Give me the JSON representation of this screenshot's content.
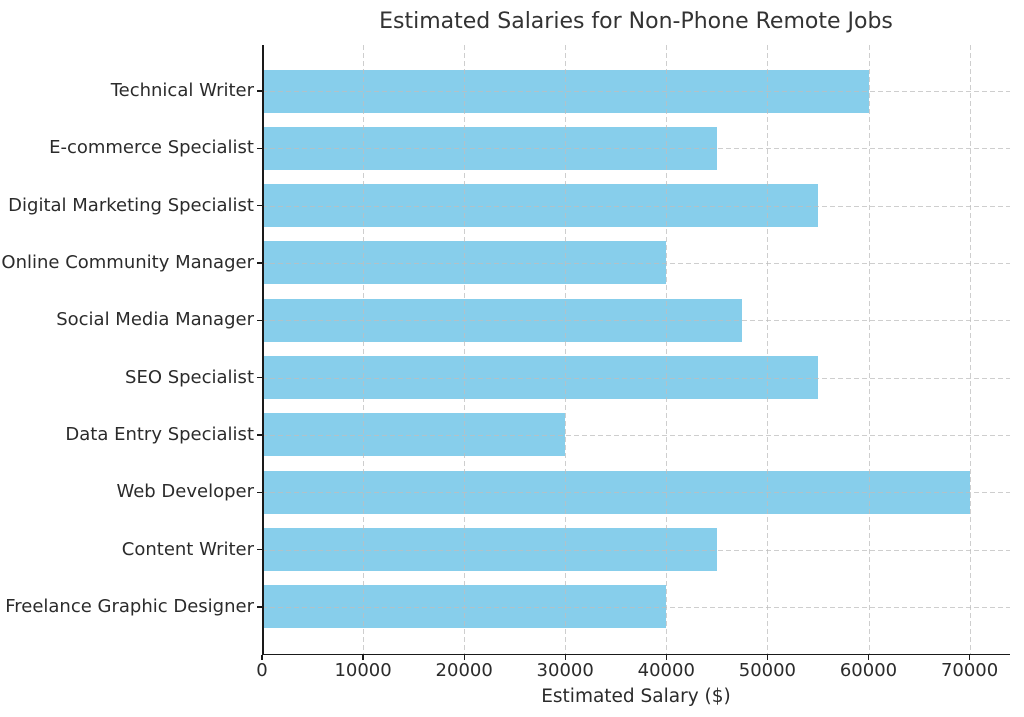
{
  "chart_data": {
    "type": "bar",
    "orientation": "horizontal",
    "title": "Estimated Salaries for Non-Phone Remote Jobs",
    "xlabel": "Estimated Salary ($)",
    "ylabel": "",
    "categories": [
      "Technical Writer",
      "E-commerce Specialist",
      "Digital Marketing Specialist",
      "Online Community Manager",
      "Social Media Manager",
      "SEO Specialist",
      "Data Entry Specialist",
      "Web Developer",
      "Content Writer",
      "Freelance Graphic Designer"
    ],
    "values": [
      60000,
      45000,
      55000,
      40000,
      47500,
      55000,
      30000,
      70000,
      45000,
      40000
    ],
    "xticks": [
      0,
      10000,
      20000,
      30000,
      40000,
      50000,
      60000,
      70000
    ],
    "xtick_labels": [
      "0",
      "10000",
      "20000",
      "30000",
      "40000",
      "50000",
      "60000",
      "70000"
    ],
    "xlim": [
      0,
      74000
    ],
    "grid": true,
    "grid_style": "dashed",
    "grid_on_top": true,
    "legend": null,
    "bar_color": "#87CEEB",
    "text_color": "#2b2b2b",
    "title_color": "#333333",
    "axis_color": "#1a1a1a",
    "background_color": "#ffffff"
  }
}
